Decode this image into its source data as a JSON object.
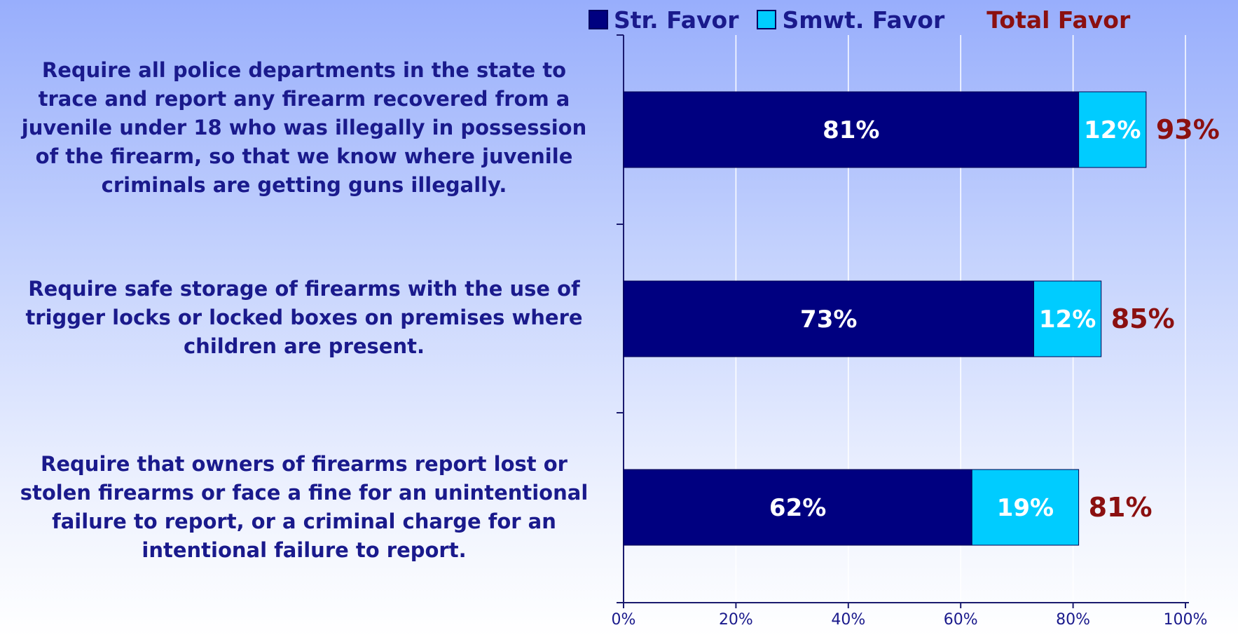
{
  "chart_data": {
    "type": "bar",
    "orientation": "horizontal",
    "stacked": true,
    "categories": [
      "Require all police departments in the state to trace and report any firearm recovered from a juvenile under 18 who was illegally in possession of the firearm, so that we know where juvenile criminals are getting guns illegally.",
      "Require safe storage of firearms with the use of trigger locks or locked boxes on premises where children are present.",
      "Require that owners of firearms report lost or stolen firearms or face a fine for an unintentional failure to report, or a criminal charge for an intentional failure to report."
    ],
    "series": [
      {
        "name": "Str. Favor",
        "values": [
          81,
          73,
          62
        ],
        "labels": [
          "81%",
          "73%",
          "62%"
        ],
        "color": "#000080"
      },
      {
        "name": "Smwt. Favor",
        "values": [
          12,
          12,
          19
        ],
        "labels": [
          "12%",
          "12%",
          "19%"
        ],
        "color": "#00ccff"
      }
    ],
    "totals": {
      "name": "Total Favor",
      "values": [
        93,
        85,
        81
      ],
      "labels": [
        "93%",
        "85%",
        "81%"
      ],
      "color": "#8b1010"
    },
    "xlim": [
      0,
      100
    ],
    "xticks": [
      0,
      20,
      40,
      60,
      80,
      100
    ],
    "xtick_labels": [
      "0%",
      "20%",
      "40%",
      "60%",
      "80%",
      "100%"
    ],
    "grid": true,
    "legend_position": "top"
  }
}
